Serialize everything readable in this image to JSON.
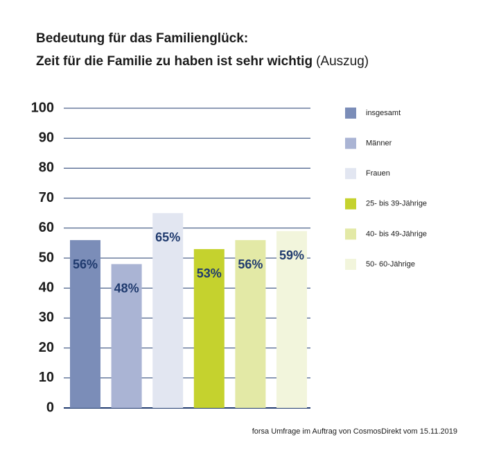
{
  "chart_data": {
    "type": "bar",
    "title_lines": [
      "Bedeutung für das Familienglück:",
      "Zeit für die Familie zu haben ist sehr wichtig"
    ],
    "title_suffix": "(Auszug)",
    "categories": [
      "insgesamt",
      "Männer",
      "Frauen",
      "25- bis 39-Jährige",
      "40- bis 49-Jährige",
      "50- 60-Jährige"
    ],
    "values": [
      56,
      48,
      65,
      53,
      56,
      59
    ],
    "value_labels": [
      "56%",
      "48%",
      "65%",
      "53%",
      "56%",
      "59%"
    ],
    "colors": [
      "#7b8db8",
      "#aab4d4",
      "#e2e6f1",
      "#c5d22e",
      "#e3e9a6",
      "#f2f5dc"
    ],
    "ylim": [
      0,
      100
    ],
    "yticks": [
      0,
      10,
      20,
      30,
      40,
      50,
      60,
      70,
      80,
      90,
      100
    ],
    "grid": true,
    "legend": "right",
    "note": "forsa Umfrage im Auftrag von CosmosDirekt vom 15.11.2019"
  }
}
